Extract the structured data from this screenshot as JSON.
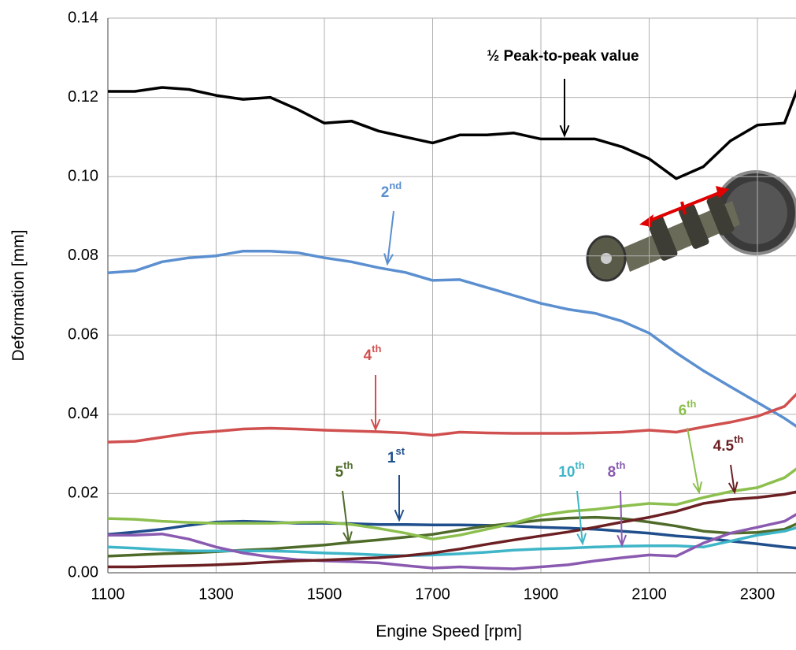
{
  "chart_data": {
    "type": "line",
    "xlabel": "Engine Speed [rpm]",
    "ylabel": "Deformation [mm]",
    "x": [
      1100,
      1150,
      1200,
      1250,
      1300,
      1350,
      1400,
      1450,
      1500,
      1550,
      1600,
      1650,
      1700,
      1750,
      1800,
      1850,
      1900,
      1950,
      2000,
      2050,
      2100,
      2150,
      2200,
      2250,
      2300,
      2350,
      2375
    ],
    "xlim": [
      1100,
      2375
    ],
    "xticks": [
      1100,
      1300,
      1500,
      1700,
      1900,
      2100,
      2300
    ],
    "ylim": [
      0,
      0.14
    ],
    "yticks": [
      {
        "value": 0,
        "label": "0.00"
      },
      0.02,
      0.04,
      0.06,
      0.08,
      {
        "value": 0.1,
        "label": "0.10"
      },
      0.12,
      0.14
    ],
    "grid": true,
    "series": [
      {
        "name": "½ Peak-to-peak value",
        "color": "#000000",
        "values": [
          0.1215,
          0.1215,
          0.1225,
          0.122,
          0.1205,
          0.1195,
          0.12,
          0.117,
          0.1135,
          0.114,
          0.1115,
          0.11,
          0.1085,
          0.1105,
          0.1105,
          0.111,
          0.1095,
          0.1095,
          0.1095,
          0.1075,
          0.1045,
          0.0995,
          0.1025,
          0.109,
          0.113,
          0.1135,
          0.1225
        ]
      },
      {
        "name": "2nd",
        "color": "#5b8fd0",
        "values": [
          0.0757,
          0.0762,
          0.0785,
          0.0795,
          0.08,
          0.0812,
          0.0812,
          0.0808,
          0.0795,
          0.0785,
          0.077,
          0.0758,
          0.0738,
          0.074,
          0.072,
          0.07,
          0.068,
          0.0665,
          0.0655,
          0.0635,
          0.0605,
          0.0555,
          0.051,
          0.047,
          0.043,
          0.039,
          0.0367
        ]
      },
      {
        "name": "4th",
        "color": "#d05050",
        "values": [
          0.033,
          0.0332,
          0.0342,
          0.0352,
          0.0357,
          0.0363,
          0.0365,
          0.0363,
          0.036,
          0.0358,
          0.0356,
          0.0353,
          0.0347,
          0.0355,
          0.0353,
          0.0352,
          0.0352,
          0.0352,
          0.0353,
          0.0355,
          0.036,
          0.0355,
          0.0368,
          0.038,
          0.0395,
          0.042,
          0.0455
        ]
      },
      {
        "name": "1st",
        "color": "#1f4e8c",
        "values": [
          0.0097,
          0.0103,
          0.011,
          0.012,
          0.0128,
          0.013,
          0.0128,
          0.0125,
          0.0125,
          0.0124,
          0.0122,
          0.0122,
          0.0121,
          0.0121,
          0.012,
          0.0118,
          0.0115,
          0.0113,
          0.011,
          0.0105,
          0.01,
          0.0093,
          0.0088,
          0.008,
          0.0073,
          0.0065,
          0.0062
        ]
      },
      {
        "name": "5th",
        "color": "#4f6b2a",
        "values": [
          0.0042,
          0.0045,
          0.0048,
          0.005,
          0.0053,
          0.0057,
          0.006,
          0.0065,
          0.007,
          0.0077,
          0.0083,
          0.009,
          0.0097,
          0.0108,
          0.0118,
          0.0125,
          0.0133,
          0.0138,
          0.014,
          0.0137,
          0.0128,
          0.0118,
          0.0105,
          0.01,
          0.0102,
          0.011,
          0.0125
        ]
      },
      {
        "name": "10th",
        "color": "#3fb5c8",
        "values": [
          0.0065,
          0.0062,
          0.0058,
          0.0055,
          0.0055,
          0.0055,
          0.0055,
          0.0053,
          0.005,
          0.0048,
          0.0045,
          0.0043,
          0.0045,
          0.0048,
          0.0052,
          0.0057,
          0.006,
          0.0062,
          0.0065,
          0.0067,
          0.0068,
          0.0068,
          0.0065,
          0.008,
          0.0095,
          0.0105,
          0.0115
        ]
      },
      {
        "name": "8th",
        "color": "#8a5ab0",
        "values": [
          0.0095,
          0.0095,
          0.0098,
          0.0085,
          0.0065,
          0.005,
          0.004,
          0.0033,
          0.003,
          0.0028,
          0.0025,
          0.0018,
          0.0012,
          0.0015,
          0.0012,
          0.001,
          0.0015,
          0.002,
          0.003,
          0.0038,
          0.0045,
          0.0042,
          0.0075,
          0.01,
          0.0115,
          0.013,
          0.015
        ]
      },
      {
        "name": "6th",
        "color": "#8cbf4e",
        "values": [
          0.0137,
          0.0135,
          0.013,
          0.0127,
          0.0125,
          0.0125,
          0.0125,
          0.0127,
          0.0128,
          0.0122,
          0.0112,
          0.01,
          0.0085,
          0.0095,
          0.011,
          0.0125,
          0.0145,
          0.0155,
          0.016,
          0.0168,
          0.0175,
          0.0172,
          0.019,
          0.0205,
          0.0215,
          0.024,
          0.0265
        ]
      },
      {
        "name": "4.5th",
        "color": "#6b1f22",
        "values": [
          0.0015,
          0.0015,
          0.0017,
          0.0018,
          0.002,
          0.0023,
          0.0027,
          0.003,
          0.0032,
          0.0035,
          0.0038,
          0.0043,
          0.005,
          0.006,
          0.0072,
          0.0083,
          0.0093,
          0.0103,
          0.0115,
          0.0128,
          0.014,
          0.0155,
          0.0175,
          0.0185,
          0.019,
          0.0198,
          0.0205
        ]
      }
    ]
  }
}
